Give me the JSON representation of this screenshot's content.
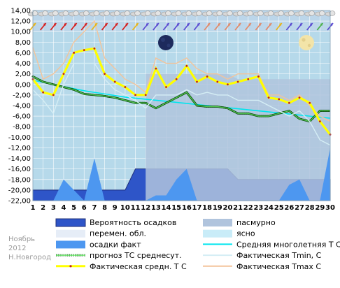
{
  "chart_data": {
    "type": "line",
    "x": [
      1,
      2,
      3,
      4,
      5,
      6,
      7,
      8,
      9,
      10,
      11,
      12,
      13,
      14,
      15,
      16,
      17,
      18,
      19,
      20,
      21,
      22,
      23,
      24,
      25,
      26,
      27,
      28,
      29,
      30
    ],
    "ylim": [
      -22,
      14
    ],
    "y_ticks": [
      "14,00",
      "12,00",
      "10,00",
      "8,00",
      "6,00",
      "4,00",
      "2,00",
      "0,00",
      "-2,00",
      "-4,00",
      "-6,00",
      "-8,00",
      "-10,00",
      "-12,00",
      "-14,00",
      "-16,00",
      "-18,00",
      "-20,00",
      "-22,00"
    ],
    "grid": true,
    "series": [
      {
        "name": "Вероятность осадков",
        "type": "area",
        "color": "#2e55c8",
        "values": [
          -20,
          -20,
          -20,
          -20,
          -20,
          -20,
          -20,
          -20,
          -20,
          -20,
          -16,
          -16,
          -16,
          -16,
          -16,
          -16,
          -16,
          -16,
          -16,
          -16,
          -18,
          -18,
          -18,
          -18,
          -18,
          -18,
          -18,
          -18,
          -18,
          -18
        ]
      },
      {
        "name": "пасмурно",
        "type": "area",
        "color": "#b0c4dd",
        "values": [
          null,
          null,
          null,
          null,
          null,
          null,
          null,
          null,
          null,
          null,
          null,
          2,
          2,
          2,
          2,
          2,
          2,
          2,
          2,
          2,
          1,
          1,
          1,
          1,
          1,
          1,
          1,
          1,
          1,
          1
        ]
      },
      {
        "name": "осадки факт",
        "type": "area",
        "color": "#4d97f0",
        "values": [
          -22,
          -22,
          -22,
          -18,
          -20,
          -22,
          -14,
          -22,
          -22,
          -22,
          -22,
          -22,
          -21,
          -21,
          -18,
          -16,
          -22,
          -22,
          -22,
          -22,
          -22,
          -22,
          -22,
          -22,
          -22,
          -19,
          -18,
          -22,
          -22,
          -12
        ]
      },
      {
        "name": "Средняя многолетняя Т С",
        "type": "line",
        "color": "#00e5ee",
        "values": [
          0.8,
          0.4,
          0.0,
          -0.4,
          -0.8,
          -1.2,
          -1.5,
          -1.8,
          -2.1,
          -2.4,
          -2.6,
          -2.8,
          -3.0,
          -3.2,
          -3.4,
          -3.6,
          -3.8,
          -4.0,
          -4.2,
          -4.4,
          -4.6,
          -4.8,
          -5.0,
          -5.2,
          -5.4,
          -5.6,
          -5.8,
          -6.0,
          -6.2,
          -6.4
        ]
      },
      {
        "name": "прогноз ТС среднесут.",
        "type": "dotted",
        "color": "#1a7a1a",
        "values": [
          1.5,
          0.5,
          0.0,
          -0.5,
          -1.0,
          -1.8,
          -2.0,
          -2.2,
          -2.5,
          -3.0,
          -3.5,
          -3.5,
          -4.5,
          -3.5,
          -2.5,
          -1.5,
          -4.0,
          -4.2,
          -4.2,
          -4.5,
          -5.5,
          -5.5,
          -6.0,
          -6.0,
          -5.5,
          -5.0,
          -6.5,
          -7.0,
          -5.0,
          -5.0
        ]
      },
      {
        "name": "Фактическая Tmin, С",
        "type": "line",
        "color": "#d5eef5",
        "values": [
          -1,
          -3,
          -5.5,
          0,
          4,
          4,
          4,
          1,
          -1,
          -2,
          -3,
          -4.5,
          -2,
          -2,
          -2,
          -1,
          -2,
          -1.5,
          -2,
          -2,
          -3,
          -3,
          -3,
          -4,
          -5,
          -6,
          -5,
          -7,
          -10.5,
          -11.5
        ]
      },
      {
        "name": "Фактическая Tmax С",
        "type": "line",
        "color": "#f4c49a",
        "values": [
          7,
          1,
          2,
          4,
          8,
          10,
          12,
          5,
          3,
          1,
          0,
          -1.5,
          5,
          4,
          4,
          5,
          3,
          2,
          2,
          1,
          2,
          2,
          2,
          -2,
          -2,
          -3,
          -2,
          -4,
          -6,
          -7
        ]
      },
      {
        "name": "Фактическая средн. Т С",
        "type": "line",
        "color": "#ffff00",
        "values": [
          1,
          -1.5,
          -2,
          2,
          6,
          6.5,
          6.8,
          2,
          0.5,
          -0.5,
          -2,
          -2,
          3,
          -0.5,
          1,
          3.5,
          0.5,
          1.5,
          0.5,
          0,
          0.5,
          1,
          1.5,
          -2.5,
          -2.8,
          -3.5,
          -2.5,
          -3.5,
          -7,
          -9.5
        ]
      }
    ],
    "weather": {
      "clouds_top": [
        1,
        2,
        3,
        4,
        5,
        6,
        7,
        8,
        9,
        10,
        11,
        12,
        13,
        14,
        15,
        16,
        17,
        18,
        19,
        20,
        21,
        22,
        23,
        24,
        25,
        26,
        27,
        28,
        29,
        30
      ],
      "row1": [
        {
          "d": 1,
          "c": "#e8b51b"
        },
        {
          "d": 2,
          "c": "#d51f1f"
        },
        {
          "d": 3,
          "c": "#d51f1f"
        },
        {
          "d": 4,
          "c": "#d51f1f"
        },
        {
          "d": 5,
          "c": "#d51f1f"
        },
        {
          "d": 6,
          "c": "#d51f1f"
        },
        {
          "d": 7,
          "c": "#e8b51b"
        },
        {
          "d": 8,
          "c": "#d51f1f"
        },
        {
          "d": 9,
          "c": "#d51f1f"
        },
        {
          "d": 10,
          "c": "#d51f1f"
        },
        {
          "d": 11,
          "c": "#e8b51b"
        },
        {
          "d": 12,
          "c": "#5a4bd1"
        },
        {
          "d": 13,
          "c": "#5a4bd1"
        },
        {
          "d": 14,
          "c": "#5a4bd1"
        },
        {
          "d": 15,
          "c": "#5a4bd1"
        },
        {
          "d": 16,
          "c": "#5a4bd1"
        },
        {
          "d": 17,
          "c": "#5a4bd1"
        },
        {
          "d": 18,
          "c": "#e08a6a"
        },
        {
          "d": 19,
          "c": "#e08a6a"
        },
        {
          "d": 20,
          "c": "#e08a6a"
        },
        {
          "d": 21,
          "c": "#e08a6a"
        },
        {
          "d": 22,
          "c": "#e08a6a"
        },
        {
          "d": 23,
          "c": "#e08a6a"
        },
        {
          "d": 24,
          "c": "#e08a6a"
        },
        {
          "d": 25,
          "c": "#e8b51b"
        },
        {
          "d": 26,
          "c": "#5a4bd1"
        },
        {
          "d": 27,
          "c": "#5a4bd1"
        },
        {
          "d": 28,
          "c": "#5a4bd1"
        },
        {
          "d": 29,
          "c": "#4bb04b"
        },
        {
          "d": 30,
          "c": "#5a4bd1"
        }
      ]
    }
  },
  "x_tick_labels": [
    "1",
    "2",
    "3",
    "4",
    "5",
    "6",
    "7",
    "8",
    "9",
    "10",
    "11",
    "12",
    "13",
    "14",
    "15",
    "16",
    "17",
    "18",
    "19",
    "20",
    "21",
    "22",
    "23",
    "24",
    "25",
    "26",
    "27",
    "28",
    "29",
    "30"
  ],
  "legend": {
    "items": [
      {
        "label": "Вероятность осадков",
        "swatch": "#2e55c8",
        "style": "box"
      },
      {
        "label": "пасмурно",
        "swatch": "#b0c4dd",
        "style": "box"
      },
      {
        "label": "перемен. обл.",
        "swatch": "#e6edf7",
        "style": "box"
      },
      {
        "label": "ясно",
        "swatch": "#c9ecf8",
        "style": "box"
      },
      {
        "label": "осадки факт",
        "swatch": "#4d97f0",
        "style": "box"
      },
      {
        "label": "Средняя многолетняя Т С",
        "swatch": "#00e5ee",
        "style": "line"
      },
      {
        "label": "прогноз ТС среднесут.",
        "swatch": "#1a7a1a",
        "style": "dotted"
      },
      {
        "label": "Фактическая Tmin, С",
        "swatch": "#d5eef5",
        "style": "line"
      },
      {
        "label": "Фактическая средн. Т С",
        "swatch": "#ffff00",
        "style": "yellowline"
      },
      {
        "label": "Фактическая Tmax С",
        "swatch": "#f4c49a",
        "style": "line"
      }
    ]
  },
  "side_caption": {
    "month": "Ноябрь",
    "year": "2012",
    "city": "Н.Новгород"
  },
  "colors": {
    "plot_bg": "#b6d9ea",
    "sky_bg": "#bcd6ea",
    "grid": "#ffffff"
  }
}
